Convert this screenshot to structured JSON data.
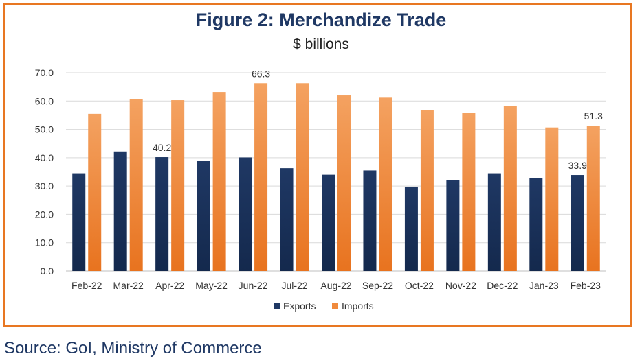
{
  "title": "Figure 2: Merchandize Trade",
  "subtitle": "$ billions",
  "source": "Source: GoI, Ministry of Commerce",
  "colors": {
    "frame": "#e87722",
    "exports": "#1f3864",
    "imports": "#f08a3c",
    "grid": "#d9d9d9"
  },
  "chart_data": {
    "type": "bar",
    "categories": [
      "Feb-22",
      "Mar-22",
      "Apr-22",
      "May-22",
      "Jun-22",
      "Jul-22",
      "Aug-22",
      "Sep-22",
      "Oct-22",
      "Nov-22",
      "Dec-22",
      "Jan-23",
      "Feb-23"
    ],
    "series": [
      {
        "name": "Exports",
        "values": [
          34.5,
          42.2,
          40.2,
          39.0,
          40.1,
          36.3,
          34.0,
          35.5,
          29.8,
          32.0,
          34.5,
          32.9,
          33.9
        ]
      },
      {
        "name": "Imports",
        "values": [
          55.5,
          60.7,
          60.3,
          63.2,
          66.3,
          66.3,
          62.0,
          61.2,
          56.7,
          55.9,
          58.2,
          50.7,
          51.3
        ]
      }
    ],
    "data_labels": [
      {
        "series": 0,
        "index": 2,
        "text": "40.2"
      },
      {
        "series": 1,
        "index": 4,
        "text": "66.3"
      },
      {
        "series": 0,
        "index": 12,
        "text": "33.9"
      },
      {
        "series": 1,
        "index": 12,
        "text": "51.3"
      }
    ],
    "yticks": [
      "0.0",
      "10.0",
      "20.0",
      "30.0",
      "40.0",
      "50.0",
      "60.0",
      "70.0"
    ],
    "ylim": [
      0,
      70
    ],
    "grid": true,
    "legend": "bottom-center"
  }
}
